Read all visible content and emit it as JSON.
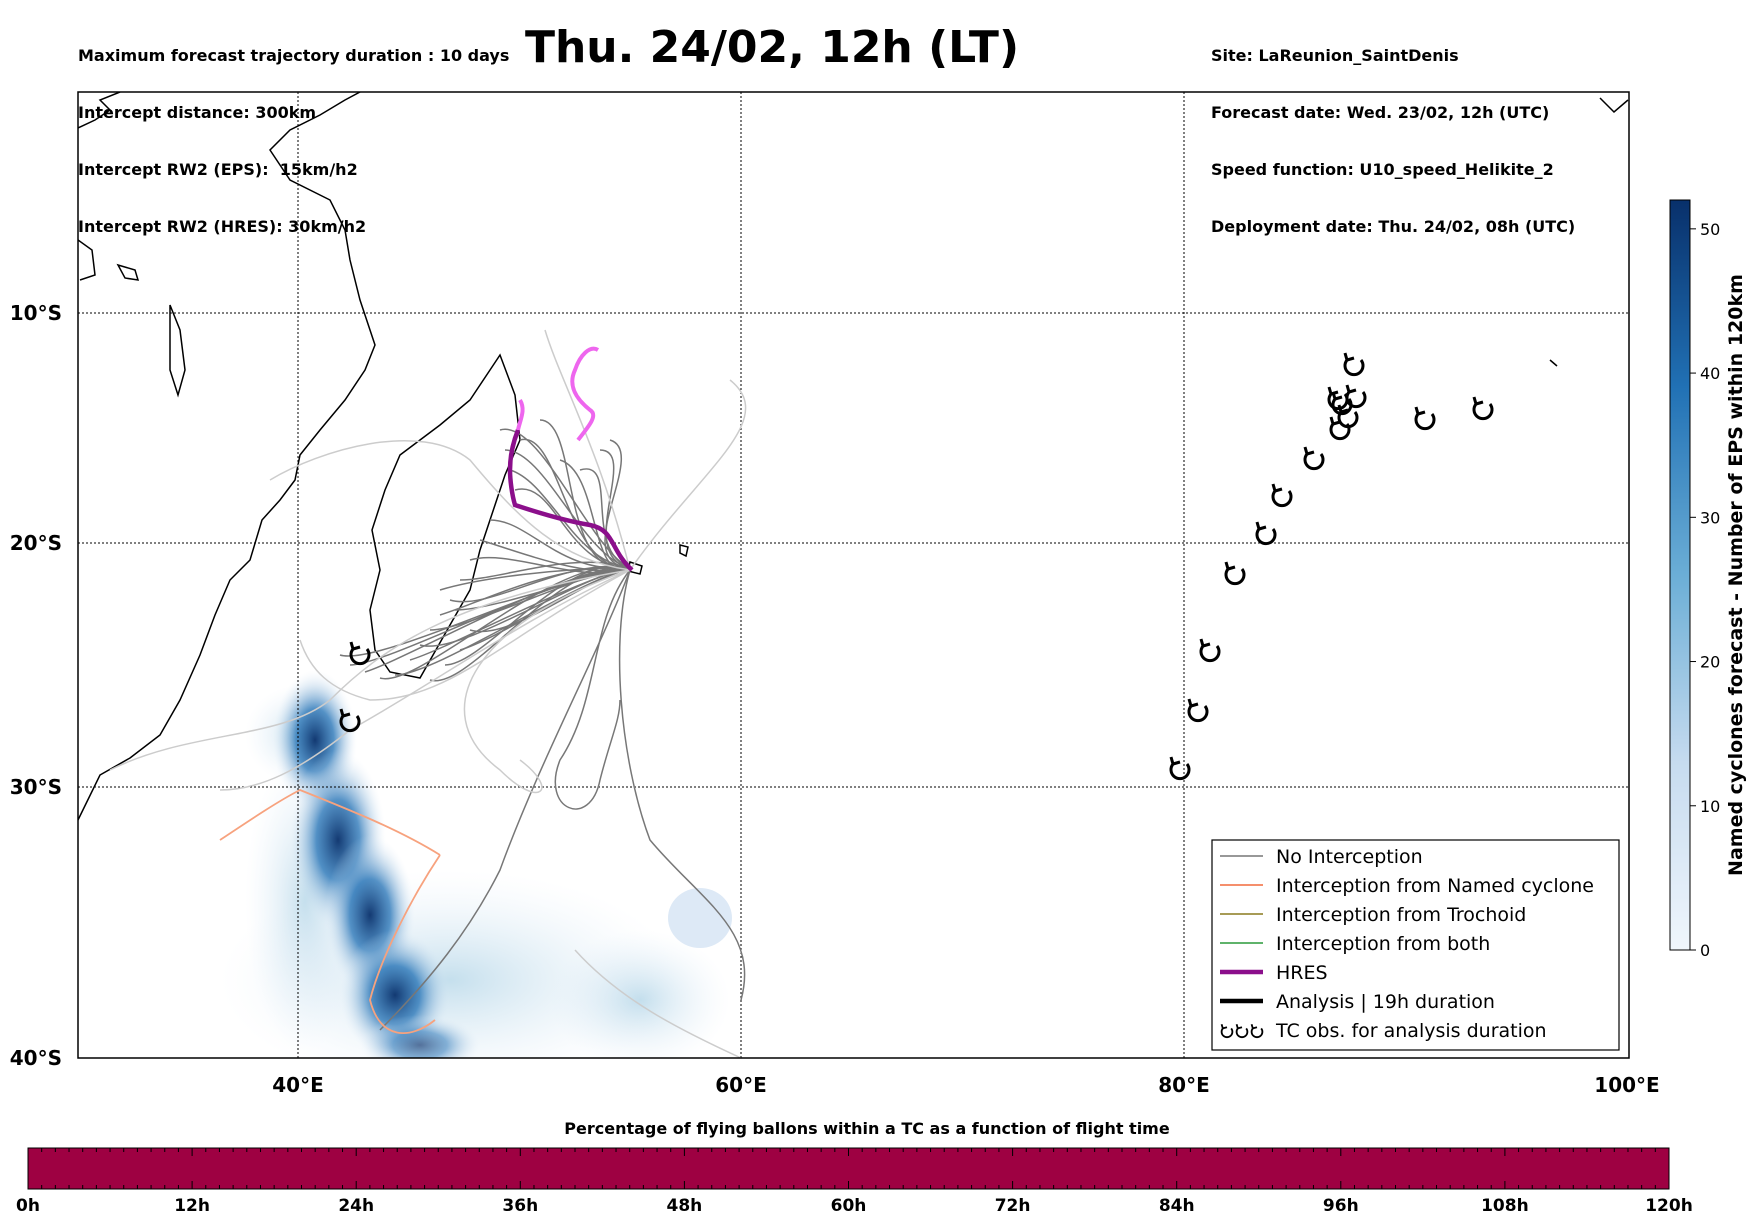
{
  "header": {
    "info_left": [
      "Maximum forecast trajectory duration : 10 days",
      "Intercept distance: 300km",
      "Intercept RW2 (EPS):  15km/h2",
      "Intercept RW2 (HRES): 30km/h2"
    ],
    "info_right": [
      "Site: LaReunion_SaintDenis",
      "Forecast date: Wed. 23/02, 12h (UTC)",
      "Speed function: U10_speed_Helikite_2",
      "Deployment date: Thu. 24/02, 08h (UTC)"
    ],
    "title": "Thu. 24/02, 12h (LT)"
  },
  "map": {
    "lon_labels": [
      "40°E",
      "60°E",
      "80°E",
      "100°E"
    ],
    "lat_labels": [
      "10°S",
      "20°S",
      "30°S",
      "40°S"
    ],
    "colors": {
      "no_interception": "#777777",
      "named_cyclone": "#f26a3c",
      "trochoid": "#8a7a1e",
      "both": "#2a9a3a",
      "hres": "#8b0f8b",
      "hres_light": "#ee66ee",
      "analysis": "#000000",
      "density_dark": "#08306b",
      "density_light": "#deebf7"
    },
    "tc_obs_icon": "cyclone-symbol-icon"
  },
  "legend": {
    "items": [
      {
        "label": "No Interception",
        "color": "#777777",
        "style": "thin"
      },
      {
        "label": "Interception from Named cyclone",
        "color": "#f26a3c",
        "style": "thin"
      },
      {
        "label": "Interception from Trochoid",
        "color": "#8a7a1e",
        "style": "thin"
      },
      {
        "label": "Interception from both",
        "color": "#2a9a3a",
        "style": "thin"
      },
      {
        "label": "HRES",
        "color": "#8b0f8b",
        "style": "thick"
      },
      {
        "label": "Analysis | 19h duration",
        "color": "#000000",
        "style": "thick"
      },
      {
        "label": "TC obs. for analysis duration",
        "color": "#000000",
        "style": "symbol"
      }
    ]
  },
  "colorbar": {
    "label": "Named cyclones forecast - Number of EPS within 120km",
    "ticks": [
      "0",
      "10",
      "20",
      "30",
      "40",
      "50"
    ]
  },
  "bottom_bar": {
    "title": "Percentage of flying ballons within a TC as a function of flight time",
    "color": "#9e0142",
    "ticks": [
      "0h",
      "12h",
      "24h",
      "36h",
      "48h",
      "60h",
      "72h",
      "84h",
      "96h",
      "108h",
      "120h"
    ]
  }
}
